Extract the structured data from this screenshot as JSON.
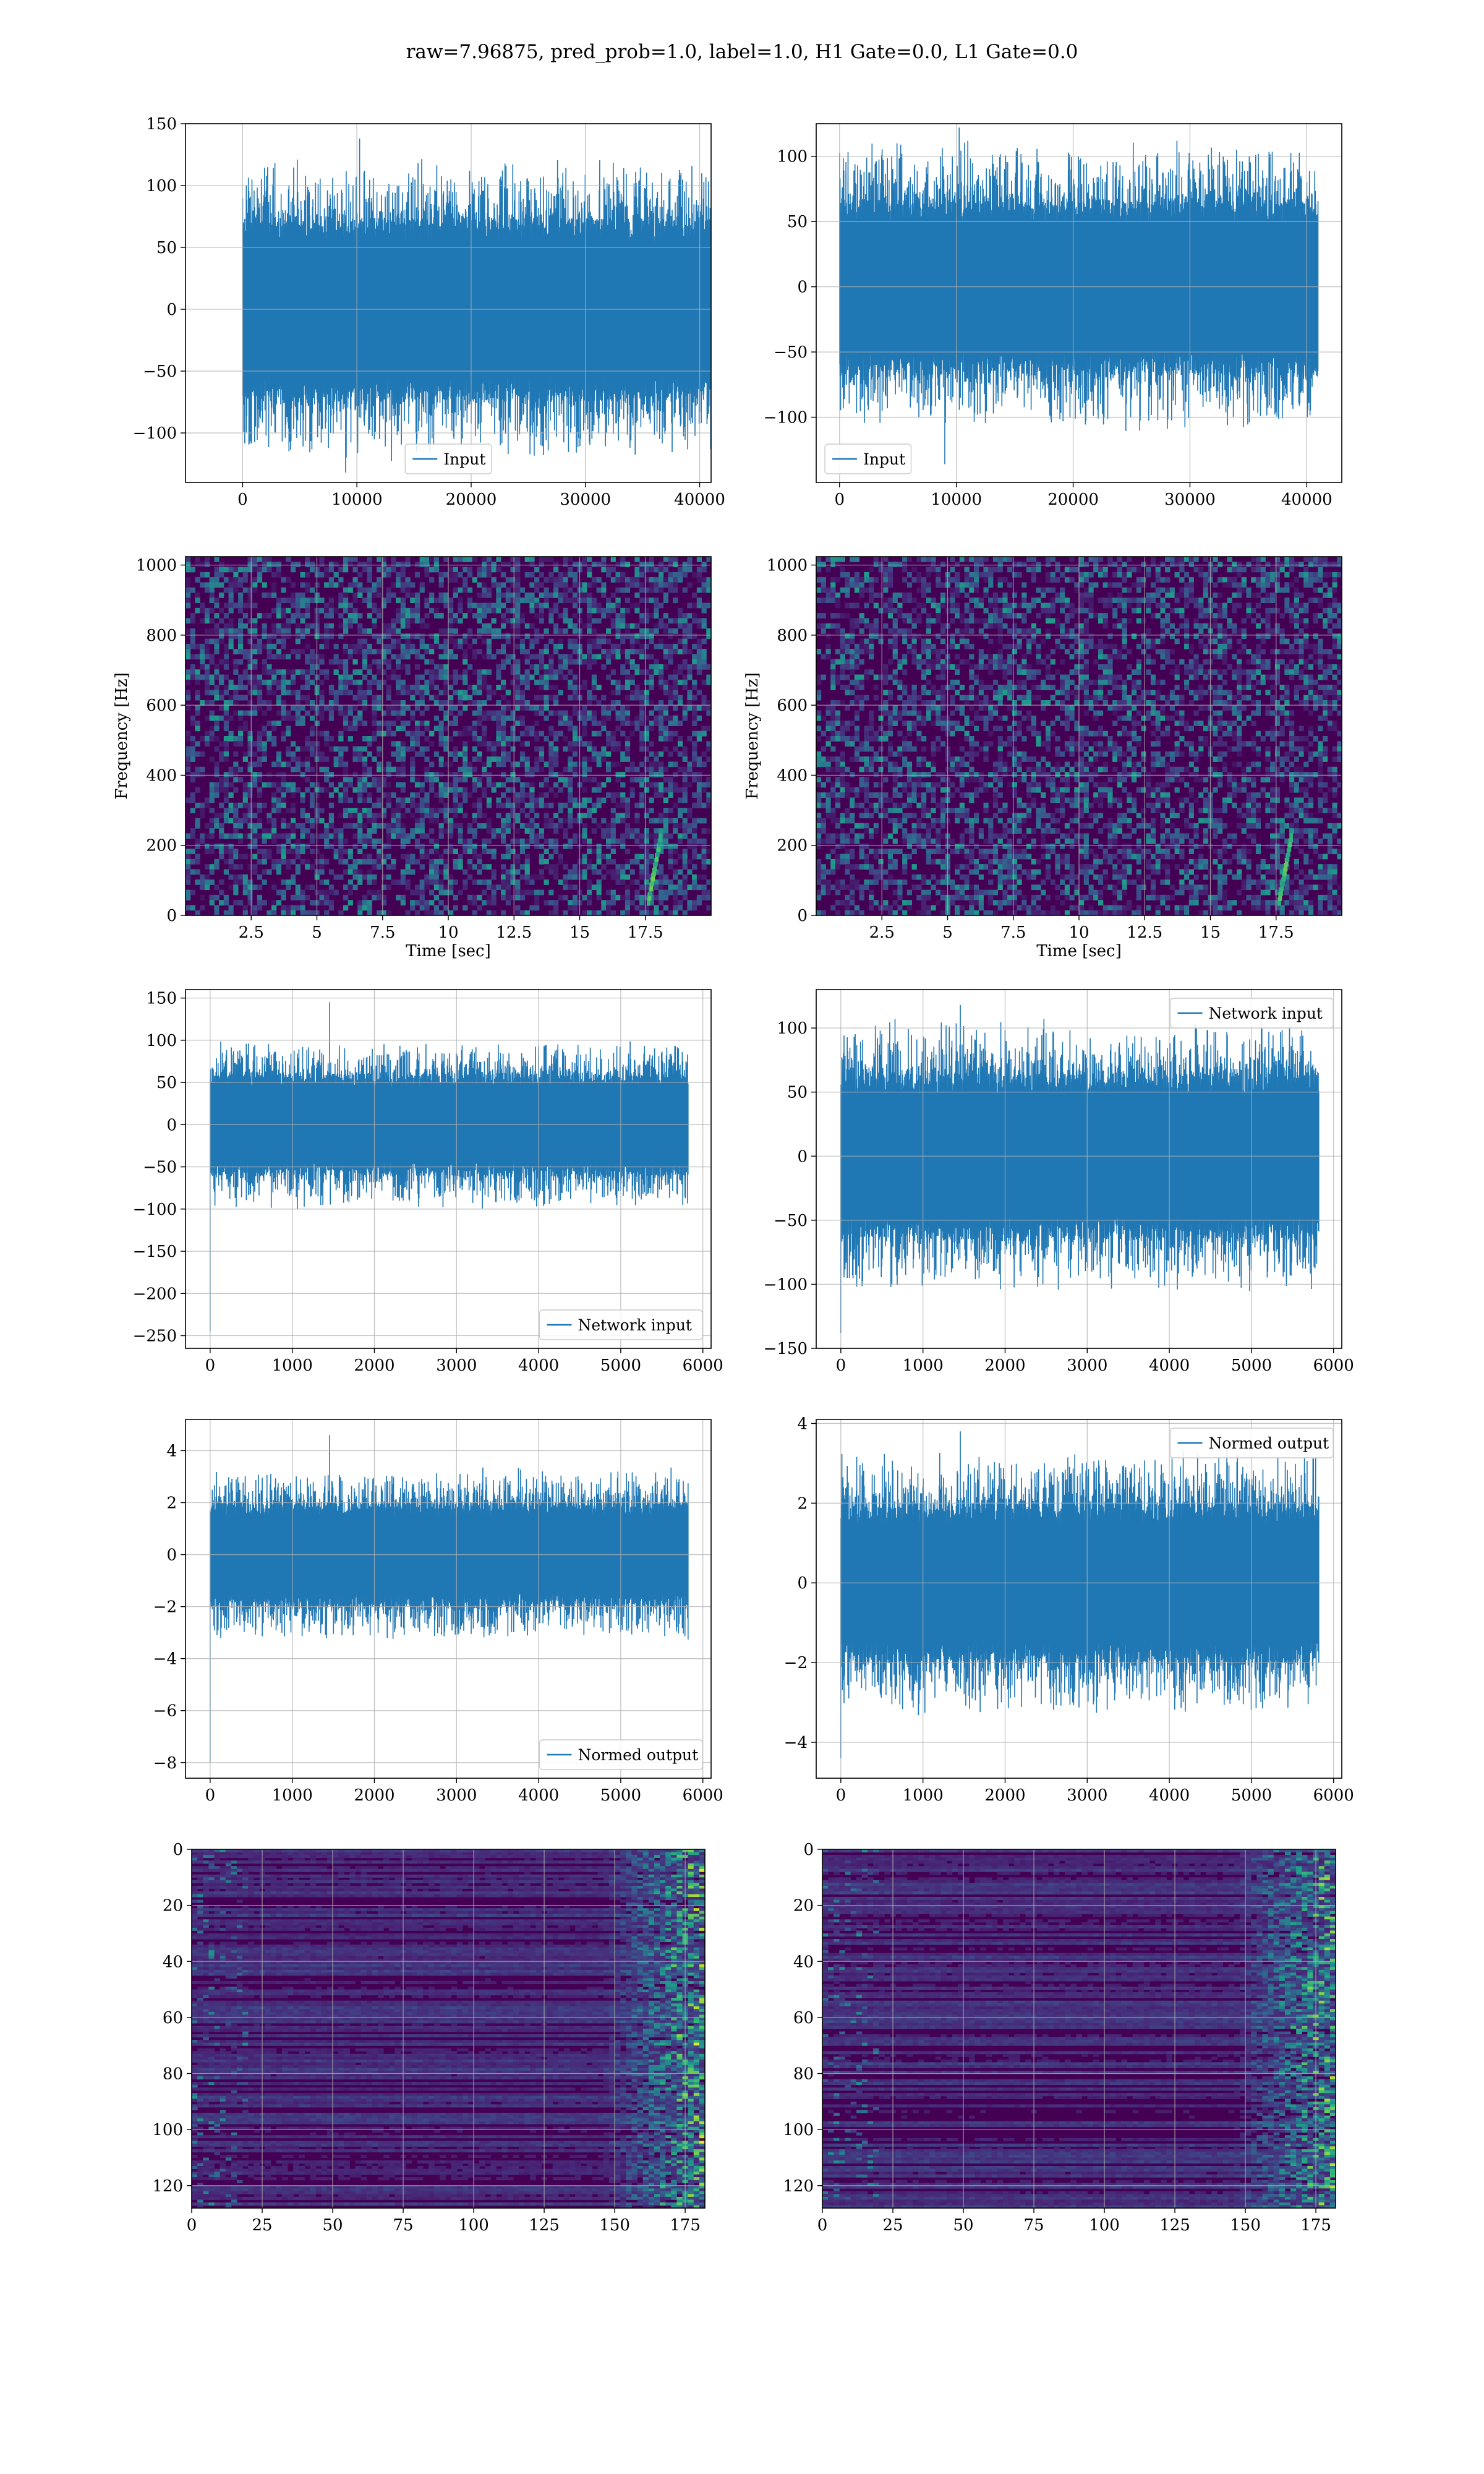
{
  "figure": {
    "suptitle": "raw=7.96875, pred_prob=1.0, label=1.0, H1 Gate=0.0, L1 Gate=0.0"
  },
  "colors": {
    "line": "#1f77b4",
    "grid": "#b0b0b0",
    "viridis_low": "#440154",
    "viridis_mid": "#21918c",
    "viridis_high": "#fde725"
  },
  "chart_data": [
    {
      "id": "row1-left",
      "type": "line",
      "xlim": [
        -5000,
        41000
      ],
      "ylim": [
        -140,
        150
      ],
      "xticks": [
        0,
        10000,
        20000,
        30000,
        40000
      ],
      "yticks": [
        -100,
        -50,
        0,
        50,
        100,
        150
      ],
      "xlabel": "",
      "ylabel": "",
      "series": [
        {
          "name": "Input",
          "x_range": [
            0,
            40960
          ],
          "envelope_min": -132,
          "envelope_max": 138,
          "core_amplitude": 55
        }
      ],
      "legend": {
        "location": "lower center",
        "entries": [
          "Input"
        ]
      },
      "grid": true
    },
    {
      "id": "row1-right",
      "type": "line",
      "xlim": [
        -2000,
        43000
      ],
      "ylim": [
        -150,
        125
      ],
      "xticks": [
        0,
        10000,
        20000,
        30000,
        40000
      ],
      "yticks": [
        -100,
        -50,
        0,
        50,
        100
      ],
      "xlabel": "",
      "ylabel": "",
      "series": [
        {
          "name": "Input",
          "x_range": [
            0,
            40960
          ],
          "envelope_min": -136,
          "envelope_max": 122,
          "core_amplitude": 50
        }
      ],
      "legend": {
        "location": "lower left",
        "entries": [
          "Input"
        ]
      },
      "grid": true
    },
    {
      "id": "row2-left",
      "type": "heatmap",
      "xlim": [
        0,
        20
      ],
      "ylim": [
        0,
        1024
      ],
      "xticks": [
        2.5,
        5.0,
        7.5,
        10.0,
        12.5,
        15.0,
        17.5
      ],
      "yticks": [
        0,
        200,
        400,
        600,
        800,
        1000
      ],
      "xlabel": "Time [sec]",
      "ylabel": "Frequency [Hz]",
      "colormap": "viridis",
      "grid": true
    },
    {
      "id": "row2-right",
      "type": "heatmap",
      "xlim": [
        0,
        20
      ],
      "ylim": [
        0,
        1024
      ],
      "xticks": [
        2.5,
        5.0,
        7.5,
        10.0,
        12.5,
        15.0,
        17.5
      ],
      "yticks": [
        0,
        200,
        400,
        600,
        800,
        1000
      ],
      "xlabel": "Time [sec]",
      "ylabel": "Frequency [Hz]",
      "colormap": "viridis",
      "grid": true
    },
    {
      "id": "row3-left",
      "type": "line",
      "xlim": [
        -300,
        6100
      ],
      "ylim": [
        -265,
        160
      ],
      "xticks": [
        0,
        1000,
        2000,
        3000,
        4000,
        5000,
        6000
      ],
      "yticks": [
        -250,
        -200,
        -150,
        -100,
        -50,
        0,
        50,
        100,
        150
      ],
      "xlabel": "",
      "ylabel": "",
      "series": [
        {
          "name": "Network input",
          "x_range": [
            0,
            5820
          ],
          "envelope_min": -245,
          "envelope_max": 145,
          "core_amplitude": 45
        }
      ],
      "legend": {
        "location": "lower right",
        "entries": [
          "Network input"
        ]
      },
      "grid": true
    },
    {
      "id": "row3-right",
      "type": "line",
      "xlim": [
        -300,
        6100
      ],
      "ylim": [
        -150,
        130
      ],
      "xticks": [
        0,
        1000,
        2000,
        3000,
        4000,
        5000,
        6000
      ],
      "yticks": [
        -150,
        -100,
        -50,
        0,
        50,
        100
      ],
      "xlabel": "",
      "ylabel": "",
      "series": [
        {
          "name": "Network input",
          "x_range": [
            0,
            5820
          ],
          "envelope_min": -138,
          "envelope_max": 118,
          "core_amplitude": 48
        }
      ],
      "legend": {
        "location": "upper right",
        "entries": [
          "Network input"
        ]
      },
      "grid": true
    },
    {
      "id": "row4-left",
      "type": "line",
      "xlim": [
        -300,
        6100
      ],
      "ylim": [
        -8.6,
        5.2
      ],
      "xticks": [
        0,
        1000,
        2000,
        3000,
        4000,
        5000,
        6000
      ],
      "yticks": [
        -8,
        -6,
        -4,
        -2,
        0,
        2,
        4
      ],
      "xlabel": "",
      "ylabel": "",
      "series": [
        {
          "name": "Normed output",
          "x_range": [
            0,
            5820
          ],
          "envelope_min": -8.0,
          "envelope_max": 4.6,
          "core_amplitude": 1.5
        }
      ],
      "legend": {
        "location": "lower right",
        "entries": [
          "Normed output"
        ]
      },
      "grid": true
    },
    {
      "id": "row4-right",
      "type": "line",
      "xlim": [
        -300,
        6100
      ],
      "ylim": [
        -4.9,
        4.1
      ],
      "xticks": [
        0,
        1000,
        2000,
        3000,
        4000,
        5000,
        6000
      ],
      "yticks": [
        -4,
        -2,
        0,
        2,
        4
      ],
      "xlabel": "",
      "ylabel": "",
      "series": [
        {
          "name": "Normed output",
          "x_range": [
            0,
            5820
          ],
          "envelope_min": -4.4,
          "envelope_max": 3.8,
          "core_amplitude": 1.5
        }
      ],
      "legend": {
        "location": "upper right",
        "entries": [
          "Normed output"
        ]
      },
      "grid": true
    },
    {
      "id": "row5-left",
      "type": "heatmap",
      "xlim": [
        0,
        182
      ],
      "ylim": [
        128,
        0
      ],
      "xticks": [
        0,
        25,
        50,
        75,
        100,
        125,
        150,
        175
      ],
      "yticks": [
        0,
        20,
        40,
        60,
        80,
        100,
        120
      ],
      "xlabel": "",
      "ylabel": "",
      "colormap": "viridis",
      "grid": true
    },
    {
      "id": "row5-right",
      "type": "heatmap",
      "xlim": [
        0,
        182
      ],
      "ylim": [
        128,
        0
      ],
      "xticks": [
        0,
        25,
        50,
        75,
        100,
        125,
        150,
        175
      ],
      "yticks": [
        0,
        20,
        40,
        60,
        80,
        100,
        120
      ],
      "xlabel": "",
      "ylabel": "",
      "colormap": "viridis",
      "grid": true
    }
  ]
}
